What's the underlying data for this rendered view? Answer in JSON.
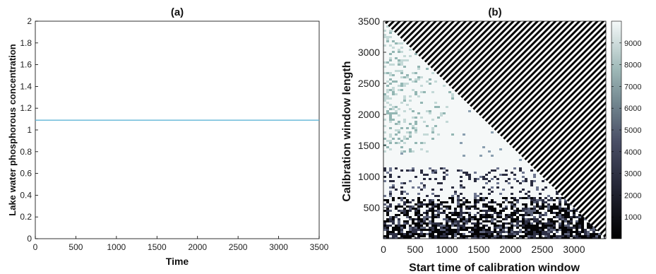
{
  "chart_data": [
    {
      "type": "line",
      "title": "(a)",
      "xlabel": "Time",
      "ylabel": "Lake water phosphorous concentration",
      "xlim": [
        0,
        3500
      ],
      "ylim": [
        0,
        2
      ],
      "xticks": [
        "0",
        "500",
        "1000",
        "1500",
        "2000",
        "2500",
        "3000",
        "3500"
      ],
      "yticks": [
        "0",
        "0.2",
        "0.4",
        "0.6",
        "0.8",
        "1",
        "1.2",
        "1.4",
        "1.6",
        "1.8",
        "2"
      ],
      "series": [
        {
          "x": [
            0,
            3500
          ],
          "y": [
            1.09,
            1.09
          ],
          "color": "#5fb4d6"
        }
      ],
      "grid": false
    },
    {
      "type": "heatmap",
      "title": "(b)",
      "xlabel": "Start time of calibration window",
      "ylabel": "Calibration window length",
      "xlim": [
        0,
        3500
      ],
      "ylim": [
        0,
        3500
      ],
      "xticks": [
        "0",
        "500",
        "1000",
        "1500",
        "2000",
        "2500",
        "3000"
      ],
      "yticks": [
        "500",
        "1000",
        "1500",
        "2000",
        "2500",
        "3000",
        "3500"
      ],
      "colorbar": {
        "range": [
          0,
          10000
        ],
        "ticks": [
          "1000",
          "2000",
          "3000",
          "4000",
          "5000",
          "6000",
          "7000",
          "8000",
          "9000"
        ]
      },
      "colors": {
        "low": "#000000",
        "mid": "#3b3d55",
        "high": "#f2f6f6",
        "teal": "#a9c9c6"
      },
      "masked_region": "start time + window length > 3500 (hatched)",
      "grid": false
    }
  ]
}
